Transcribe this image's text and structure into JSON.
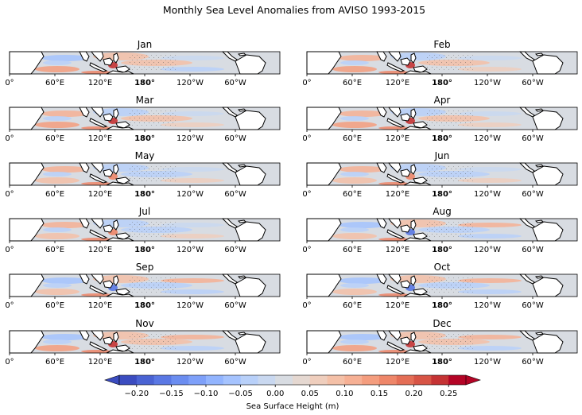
{
  "figure": {
    "title": "Monthly Sea Level Anomalies from AVISO 1993-2015"
  },
  "chart_data": {
    "type": "heatmap",
    "title": "Monthly Sea Level Anomalies from AVISO 1993-2015",
    "panels": [
      "Jan",
      "Feb",
      "Mar",
      "Apr",
      "May",
      "Jun",
      "Jul",
      "Aug",
      "Sep",
      "Oct",
      "Nov",
      "Dec"
    ],
    "longitude_ticks": [
      "0°",
      "60°E",
      "120°E",
      "180°",
      "120°W",
      "60°W"
    ],
    "colorbar": {
      "label": "Sea Surface Height (m)",
      "ticks": [
        "−0.20",
        "−0.15",
        "−0.10",
        "−0.05",
        "0.00",
        "0.05",
        "0.10",
        "0.15",
        "0.20",
        "0.25"
      ],
      "range": [
        -0.225,
        0.275
      ],
      "levels": 20,
      "extend": "both",
      "colormap": "coolwarm",
      "colors": [
        "#3b4cc0",
        "#4a63d3",
        "#5a78e4",
        "#6b8df0",
        "#7ea0f9",
        "#92b4fe",
        "#a5c3fe",
        "#b8d0f9",
        "#c9d8f0",
        "#d8dce2",
        "#e5d8d1",
        "#efcebd",
        "#f4c0a7",
        "#f6b094",
        "#f49d7e",
        "#ee8669",
        "#e46e56",
        "#d75445",
        "#c53334",
        "#b40426"
      ],
      "under_color": "#3b4cc0",
      "over_color": "#b40426"
    }
  }
}
